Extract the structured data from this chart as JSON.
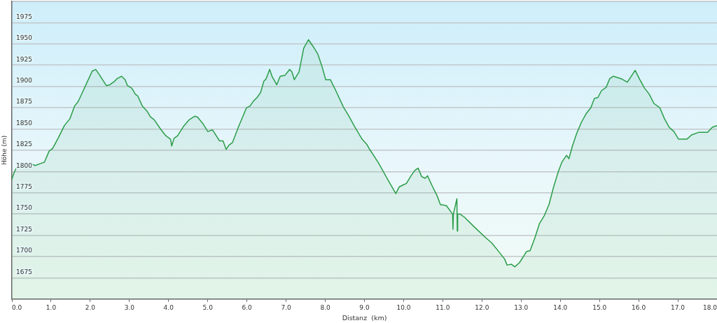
{
  "chart_data": {
    "type": "area",
    "xlabel": "Distanz  (km)",
    "ylabel": "Höhe (m)",
    "x": [
      0,
      0.05,
      0.11,
      0.23,
      0.47,
      0.59,
      0.77,
      0.83,
      0.95,
      1.04,
      1.19,
      1.34,
      1.48,
      1.6,
      1.69,
      1.81,
      1.93,
      2.05,
      2.14,
      2.23,
      2.41,
      2.5,
      2.62,
      2.68,
      2.8,
      2.89,
      2.95,
      3.06,
      3.15,
      3.21,
      3.33,
      3.45,
      3.54,
      3.63,
      3.81,
      3.93,
      4.05,
      4.08,
      4.14,
      4.23,
      4.38,
      4.53,
      4.67,
      4.74,
      4.88,
      5.0,
      5.12,
      5.3,
      5.39,
      5.47,
      5.54,
      5.63,
      5.78,
      5.99,
      6.08,
      6.17,
      6.26,
      6.35,
      6.43,
      6.49,
      6.58,
      6.64,
      6.76,
      6.85,
      6.97,
      7.09,
      7.15,
      7.21,
      7.33,
      7.45,
      7.57,
      7.69,
      7.81,
      7.92,
      8.01,
      8.13,
      8.28,
      8.46,
      8.58,
      8.76,
      8.94,
      9.06,
      9.12,
      9.36,
      9.59,
      9.8,
      9.89,
      9.98,
      10.07,
      10.19,
      10.28,
      10.37,
      10.46,
      10.55,
      10.61,
      10.73,
      10.85,
      10.94,
      11.09,
      11.25,
      11.26,
      11.27,
      11.36,
      11.37,
      11.38,
      11.44,
      11.56,
      11.8,
      12.1,
      12.25,
      12.46,
      12.58,
      12.64,
      12.75,
      12.84,
      12.96,
      13.14,
      13.23,
      13.35,
      13.47,
      13.59,
      13.71,
      13.83,
      13.95,
      14.04,
      14.16,
      14.22,
      14.31,
      14.42,
      14.54,
      14.66,
      14.78,
      14.87,
      14.96,
      15.05,
      15.17,
      15.26,
      15.35,
      15.56,
      15.71,
      15.91,
      16.03,
      16.15,
      16.27,
      16.39,
      16.54,
      16.66,
      16.78,
      16.9,
      17.02,
      17.23,
      17.35,
      17.53,
      17.76,
      17.88,
      18.0
    ],
    "series": [
      {
        "color": "#2a9d48",
        "values": [
          1791,
          1798,
          1804,
          1808,
          1810,
          1807,
          1810,
          1811,
          1824,
          1827,
          1840,
          1854,
          1862,
          1877,
          1882,
          1894,
          1906,
          1918,
          1920,
          1914,
          1901,
          1902,
          1906,
          1909,
          1912,
          1908,
          1901,
          1898,
          1891,
          1889,
          1877,
          1871,
          1864,
          1861,
          1849,
          1842,
          1838,
          1830,
          1839,
          1842,
          1853,
          1861,
          1865,
          1864,
          1856,
          1847,
          1849,
          1836,
          1836,
          1826,
          1831,
          1834,
          1852,
          1875,
          1877,
          1883,
          1887,
          1893,
          1906,
          1909,
          1920,
          1912,
          1902,
          1912,
          1913,
          1920,
          1917,
          1908,
          1917,
          1945,
          1955,
          1947,
          1938,
          1923,
          1908,
          1908,
          1894,
          1876,
          1867,
          1852,
          1838,
          1832,
          1827,
          1810,
          1791,
          1774,
          1782,
          1784,
          1786,
          1795,
          1801,
          1804,
          1794,
          1792,
          1795,
          1783,
          1772,
          1761,
          1760,
          1750,
          1732,
          1750,
          1768,
          1730,
          1750,
          1750,
          1746,
          1735,
          1722,
          1716,
          1704,
          1697,
          1690,
          1691,
          1688,
          1693,
          1706,
          1707,
          1722,
          1739,
          1748,
          1761,
          1782,
          1800,
          1811,
          1819,
          1815,
          1830,
          1845,
          1858,
          1868,
          1875,
          1886,
          1887,
          1895,
          1899,
          1909,
          1912,
          1909,
          1905,
          1919,
          1908,
          1898,
          1891,
          1880,
          1875,
          1862,
          1852,
          1847,
          1838,
          1838,
          1843,
          1846,
          1846,
          1852,
          1854
        ]
      }
    ],
    "xlim": [
      0,
      18
    ],
    "ylim": [
      1650,
      2000
    ],
    "xticks": [
      {
        "value": 0,
        "label": "0.0"
      },
      {
        "value": 1,
        "label": "1.0"
      },
      {
        "value": 2,
        "label": "2.0"
      },
      {
        "value": 3,
        "label": "3.0"
      },
      {
        "value": 4,
        "label": "4.0"
      },
      {
        "value": 5,
        "label": "5.0"
      },
      {
        "value": 6,
        "label": "6.0"
      },
      {
        "value": 7,
        "label": "7.0"
      },
      {
        "value": 8,
        "label": "8.0"
      },
      {
        "value": 9,
        "label": "9.0"
      },
      {
        "value": 10,
        "label": "10.0"
      },
      {
        "value": 11,
        "label": "11.0"
      },
      {
        "value": 12,
        "label": "12.0"
      },
      {
        "value": 13,
        "label": "13.0"
      },
      {
        "value": 14,
        "label": "14.0"
      },
      {
        "value": 15,
        "label": "15.0"
      },
      {
        "value": 16,
        "label": "16.0"
      },
      {
        "value": 17,
        "label": "17.0"
      },
      {
        "value": 18,
        "label": "18.0"
      }
    ],
    "yticks": [
      1675,
      1700,
      1725,
      1750,
      1775,
      1800,
      1825,
      1850,
      1875,
      1900,
      1925,
      1950,
      1975
    ],
    "grid": "y",
    "marker": "none"
  }
}
